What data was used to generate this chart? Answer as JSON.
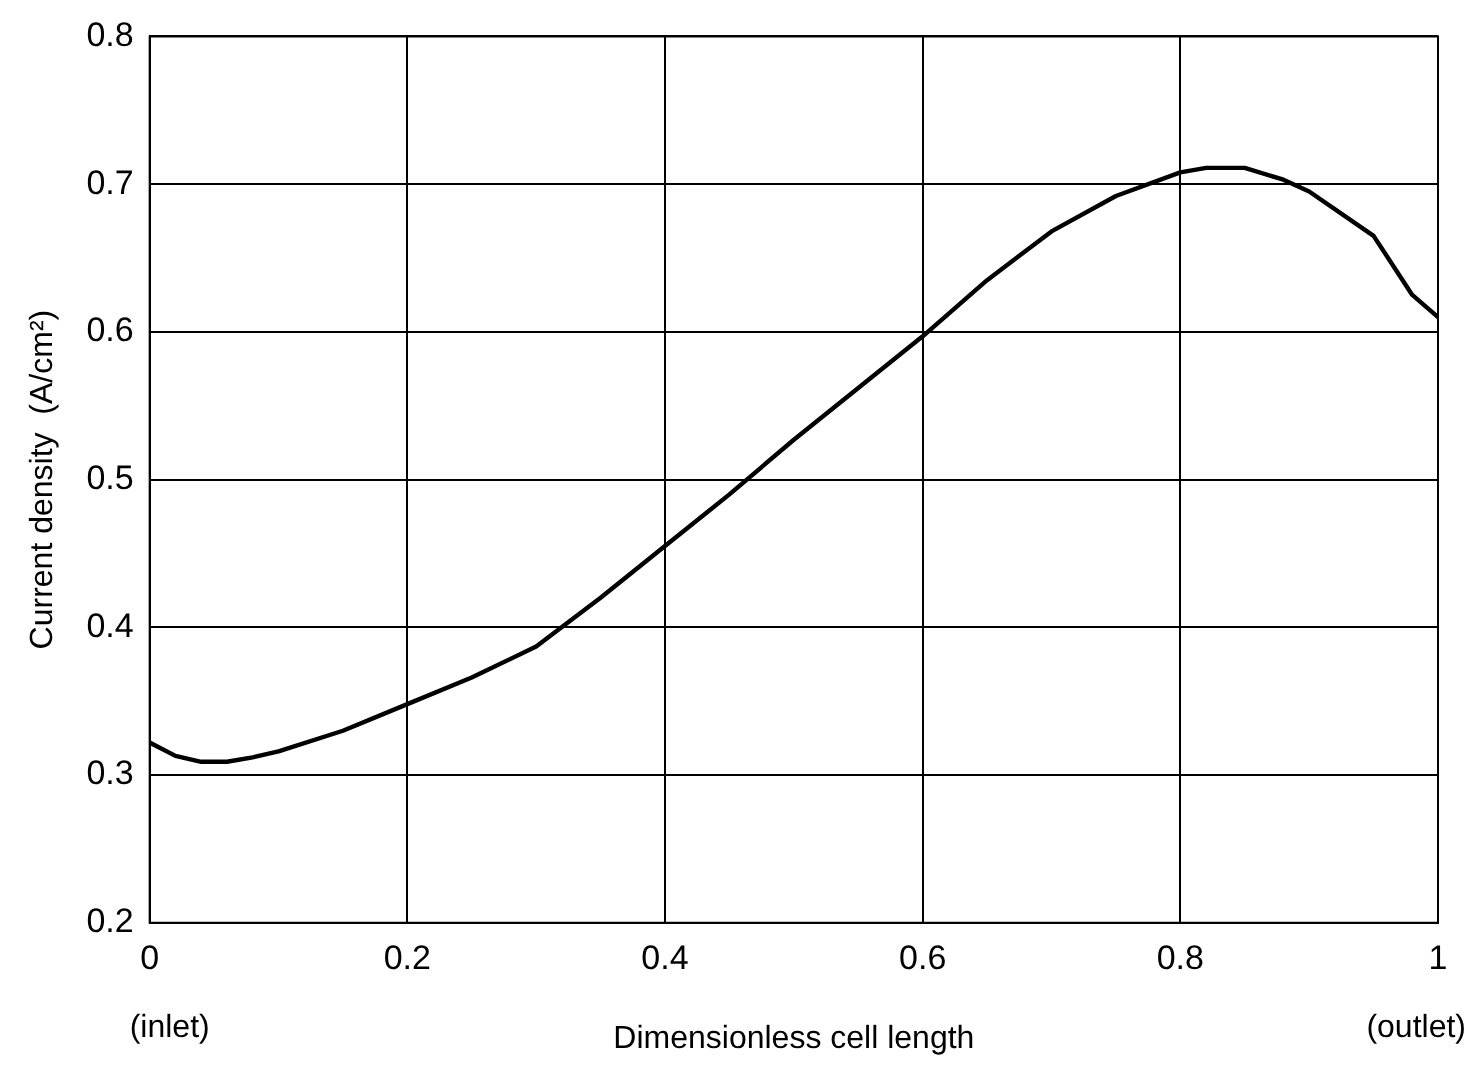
{
  "chart_data": {
    "type": "line",
    "xlabel": "Dimensionless cell length",
    "ylabel": "Current density  (A/cm²)",
    "annotations": [
      "(inlet)",
      "(outlet)"
    ],
    "x": [
      0,
      0.02,
      0.04,
      0.06,
      0.08,
      0.1,
      0.15,
      0.2,
      0.25,
      0.3,
      0.35,
      0.4,
      0.45,
      0.5,
      0.55,
      0.6,
      0.65,
      0.7,
      0.75,
      0.8,
      0.82,
      0.85,
      0.88,
      0.9,
      0.95,
      0.98,
      1.0
    ],
    "series": [
      {
        "color": "#000000",
        "values": [
          0.322,
          0.313,
          0.309,
          0.309,
          0.312,
          0.316,
          0.33,
          0.348,
          0.366,
          0.387,
          0.42,
          0.455,
          0.49,
          0.527,
          0.562,
          0.597,
          0.635,
          0.668,
          0.692,
          0.708,
          0.711,
          0.711,
          0.703,
          0.695,
          0.665,
          0.625,
          0.61
        ]
      }
    ],
    "xlim": [
      0,
      1
    ],
    "xticks": [
      0,
      0.2,
      0.4,
      0.6,
      0.8,
      1
    ],
    "ylim": [
      0.2,
      0.8
    ],
    "yticks": [
      0.2,
      0.3,
      0.4,
      0.5,
      0.6,
      0.7,
      0.8
    ],
    "grid": true,
    "legend": false,
    "marker": "none",
    "line_style": "solid"
  }
}
